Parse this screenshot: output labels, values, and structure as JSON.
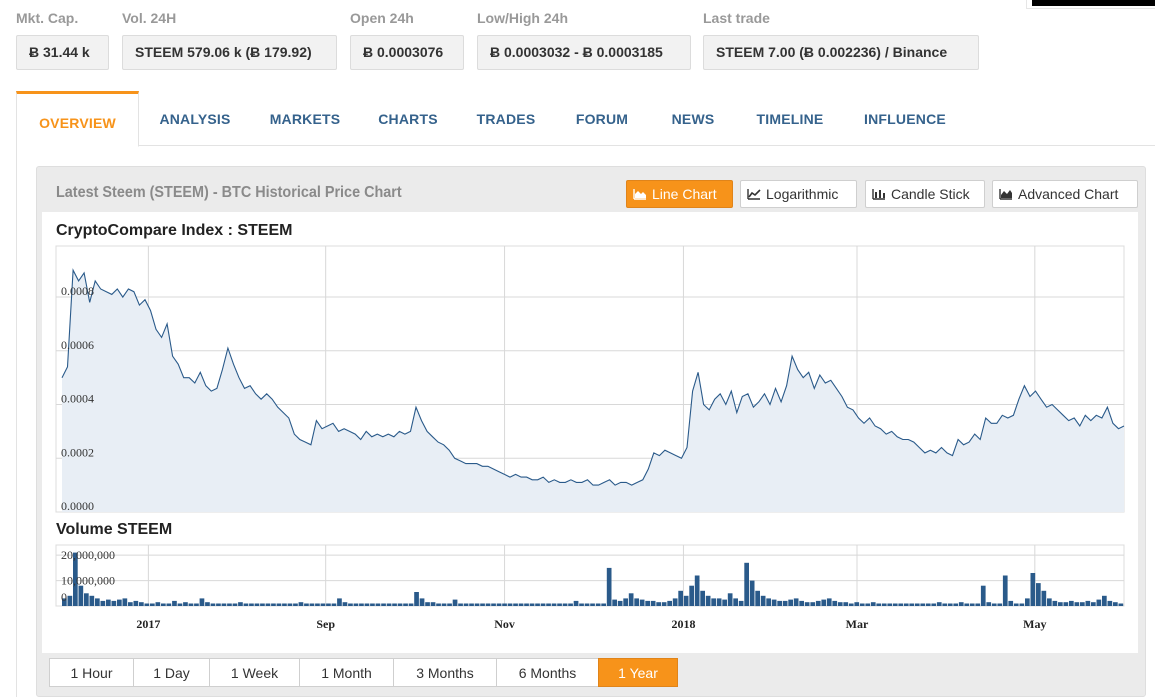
{
  "stats": [
    {
      "label": "Mkt. Cap.",
      "value": "Ƀ 31.44 k"
    },
    {
      "label": "Vol. 24H",
      "value": "STEEM 579.06 k (Ƀ 179.92)"
    },
    {
      "label": "Open 24h",
      "value": "Ƀ 0.0003076"
    },
    {
      "label": "Low/High 24h",
      "value": "Ƀ 0.0003032 - Ƀ 0.0003185"
    },
    {
      "label": "Last trade",
      "value": "STEEM 7.00 (Ƀ 0.002236) / Binance"
    }
  ],
  "tabs": [
    {
      "label": "OVERVIEW",
      "active": true
    },
    {
      "label": "ANALYSIS"
    },
    {
      "label": "MARKETS"
    },
    {
      "label": "CHARTS"
    },
    {
      "label": "TRADES"
    },
    {
      "label": "FORUM"
    },
    {
      "label": "NEWS"
    },
    {
      "label": "TIMELINE"
    },
    {
      "label": "INFLUENCE"
    }
  ],
  "panel": {
    "title": "Latest Steem (STEEM) - BTC Historical Price Chart",
    "chart_types": [
      {
        "label": "Line Chart",
        "icon": "area-chart-icon",
        "active": true
      },
      {
        "label": "Logarithmic",
        "icon": "line-chart-icon"
      },
      {
        "label": "Candle Stick",
        "icon": "candlestick-icon"
      },
      {
        "label": "Advanced Chart",
        "icon": "advanced-chart-icon"
      }
    ]
  },
  "ranges": [
    {
      "label": "1 Hour"
    },
    {
      "label": "1 Day"
    },
    {
      "label": "1 Week"
    },
    {
      "label": "1 Month"
    },
    {
      "label": "3 Months"
    },
    {
      "label": "6 Months"
    },
    {
      "label": "1 Year",
      "active": true
    }
  ],
  "colors": {
    "accent": "#f7931a",
    "line": "#2a5a8a",
    "fill": "#e8eef5",
    "tab_text": "#35628c"
  },
  "chart_data": [
    {
      "type": "area",
      "title": "CryptoCompare Index : STEEM",
      "ylim": [
        0,
        0.00099
      ],
      "yticks": [
        "0.0000",
        "0.0002",
        "0.0004",
        "0.0006",
        "0.0008"
      ],
      "xticks": [
        "2017",
        "Sep",
        "Nov",
        "2018",
        "Mar",
        "May"
      ],
      "series": [
        {
          "values": [
            0.0005,
            0.00054,
            0.0009,
            0.00086,
            0.00089,
            0.00078,
            0.00086,
            0.00083,
            0.00082,
            0.00081,
            0.00083,
            0.0008,
            0.00083,
            0.00082,
            0.00077,
            0.00079,
            0.00075,
            0.00068,
            0.00065,
            0.0007,
            0.00058,
            0.00055,
            0.0005,
            0.0005,
            0.00048,
            0.00052,
            0.00047,
            0.00045,
            0.00046,
            0.00053,
            0.00061,
            0.00055,
            0.0005,
            0.00046,
            0.00047,
            0.00044,
            0.00042,
            0.00044,
            0.00042,
            0.00039,
            0.00037,
            0.00035,
            0.00029,
            0.00027,
            0.00026,
            0.00025,
            0.00034,
            0.00031,
            0.00032,
            0.00033,
            0.0003,
            0.00031,
            0.0003,
            0.00029,
            0.00027,
            0.0003,
            0.00028,
            0.00029,
            0.00028,
            0.00029,
            0.00028,
            0.0003,
            0.00029,
            0.0003,
            0.00039,
            0.00034,
            0.0003,
            0.00028,
            0.00026,
            0.00025,
            0.00023,
            0.0002,
            0.00019,
            0.00018,
            0.00018,
            0.00018,
            0.00017,
            0.00017,
            0.00016,
            0.00015,
            0.00014,
            0.00013,
            0.00014,
            0.00013,
            0.00013,
            0.00012,
            0.00012,
            0.00013,
            0.00011,
            0.00012,
            0.00011,
            0.00011,
            0.00012,
            0.00011,
            0.00011,
            0.00012,
            0.0001,
            0.0001,
            0.00011,
            0.00012,
            0.0001,
            0.00011,
            0.00011,
            0.0001,
            0.00011,
            0.00012,
            0.00016,
            0.00022,
            0.00021,
            0.00023,
            0.00022,
            0.00021,
            0.0002,
            0.00024,
            0.00045,
            0.00052,
            0.0004,
            0.00038,
            0.00042,
            0.00044,
            0.0004,
            0.00045,
            0.00037,
            0.00043,
            0.00044,
            0.00039,
            0.00041,
            0.00044,
            0.0004,
            0.00046,
            0.00041,
            0.00047,
            0.00058,
            0.00053,
            0.0005,
            0.00052,
            0.00046,
            0.00051,
            0.00048,
            0.00049,
            0.00046,
            0.00043,
            0.00039,
            0.00038,
            0.00035,
            0.00033,
            0.00035,
            0.00032,
            0.00031,
            0.00029,
            0.0003,
            0.00028,
            0.00027,
            0.00027,
            0.00026,
            0.00024,
            0.00022,
            0.00023,
            0.00022,
            0.00024,
            0.00022,
            0.00021,
            0.00027,
            0.00025,
            0.00026,
            0.00029,
            0.00027,
            0.00035,
            0.00033,
            0.00033,
            0.00036,
            0.00035,
            0.00036,
            0.00042,
            0.00047,
            0.00043,
            0.00045,
            0.00042,
            0.00039,
            0.0004,
            0.00038,
            0.00036,
            0.00034,
            0.00035,
            0.00032,
            0.00036,
            0.00034,
            0.00036,
            0.00035,
            0.00039,
            0.00033,
            0.00031,
            0.00032
          ]
        }
      ]
    },
    {
      "type": "bar",
      "title": "Volume STEEM",
      "yticks": [
        "20,000,000",
        "10,000,000",
        "0"
      ],
      "ylim": [
        0,
        24000000
      ],
      "series": [
        {
          "values": [
            3000000,
            4000000,
            21000000,
            8000000,
            5000000,
            4000000,
            3000000,
            2000000,
            2500000,
            2000000,
            2500000,
            3000000,
            1500000,
            2000000,
            1500000,
            1000000,
            1000000,
            1500000,
            1000000,
            1000000,
            2000000,
            1000000,
            1500000,
            1000000,
            1000000,
            3000000,
            1500000,
            1000000,
            1000000,
            1000000,
            1000000,
            1000000,
            1500000,
            1000000,
            1000000,
            1000000,
            1000000,
            1000000,
            1000000,
            1000000,
            1000000,
            1000000,
            1000000,
            1500000,
            1000000,
            1000000,
            1000000,
            1000000,
            1000000,
            1000000,
            3000000,
            1500000,
            1000000,
            1000000,
            1000000,
            1000000,
            1000000,
            1000000,
            1000000,
            1000000,
            1000000,
            1000000,
            1000000,
            1000000,
            5500000,
            3000000,
            1500000,
            1500000,
            1000000,
            1000000,
            1000000,
            2500000,
            1000000,
            1000000,
            1000000,
            1000000,
            1000000,
            1000000,
            1000000,
            1000000,
            1000000,
            1000000,
            1000000,
            1000000,
            1000000,
            1000000,
            1000000,
            1000000,
            1000000,
            1000000,
            1000000,
            1000000,
            1000000,
            2000000,
            1000000,
            1000000,
            1000000,
            1000000,
            1000000,
            15000000,
            2500000,
            2000000,
            3000000,
            5000000,
            3000000,
            2500000,
            2000000,
            2000000,
            1500000,
            1500000,
            2000000,
            3000000,
            6000000,
            4000000,
            8000000,
            12000000,
            6000000,
            4000000,
            3000000,
            3000000,
            2500000,
            5000000,
            3000000,
            2000000,
            17000000,
            10000000,
            6000000,
            4000000,
            3000000,
            2500000,
            2000000,
            2000000,
            2500000,
            3000000,
            2000000,
            1500000,
            1500000,
            2000000,
            2500000,
            3000000,
            2000000,
            1500000,
            1500000,
            1000000,
            1500000,
            1000000,
            1000000,
            1500000,
            1000000,
            1000000,
            1000000,
            1000000,
            1000000,
            1000000,
            1000000,
            1000000,
            1000000,
            1000000,
            1000000,
            1500000,
            1000000,
            1000000,
            1000000,
            1500000,
            1000000,
            1000000,
            1000000,
            8000000,
            1500000,
            1000000,
            1000000,
            12000000,
            2000000,
            1000000,
            1000000,
            3000000,
            13000000,
            9000000,
            6000000,
            3000000,
            2000000,
            1500000,
            1500000,
            2000000,
            1500000,
            1500000,
            2000000,
            1500000,
            2500000,
            4000000,
            2000000,
            1500000,
            1000000
          ]
        }
      ]
    }
  ]
}
